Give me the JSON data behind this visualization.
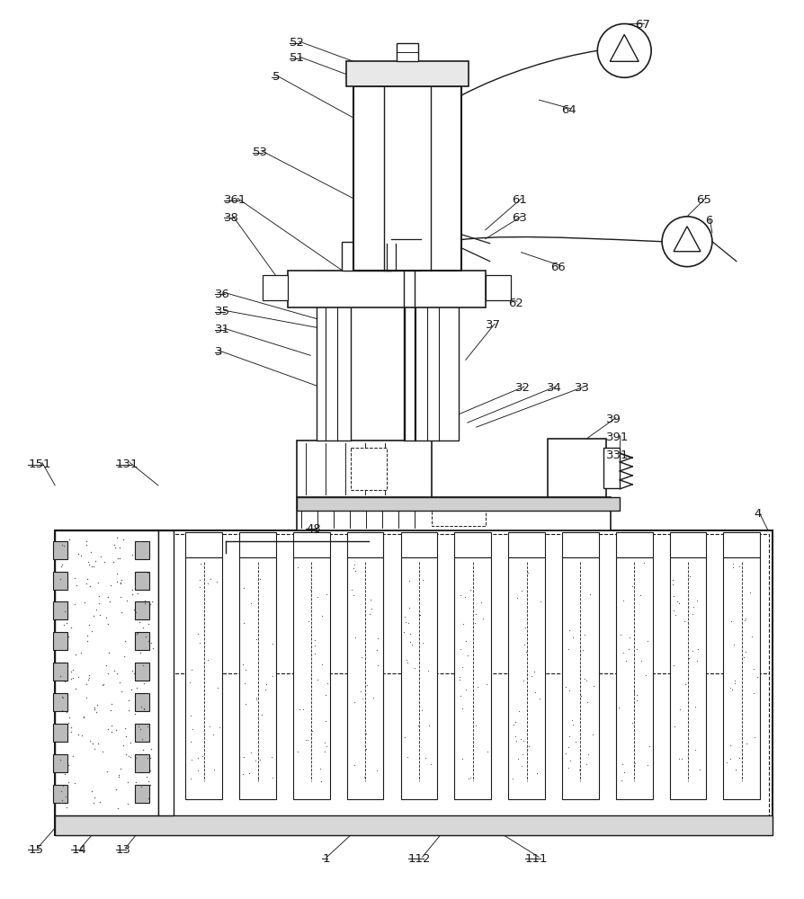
{
  "bg_color": "#ffffff",
  "lc": "#1a1a1a",
  "lw": 1.0,
  "fig_w": 8.94,
  "fig_h": 10.0,
  "dpi": 100
}
